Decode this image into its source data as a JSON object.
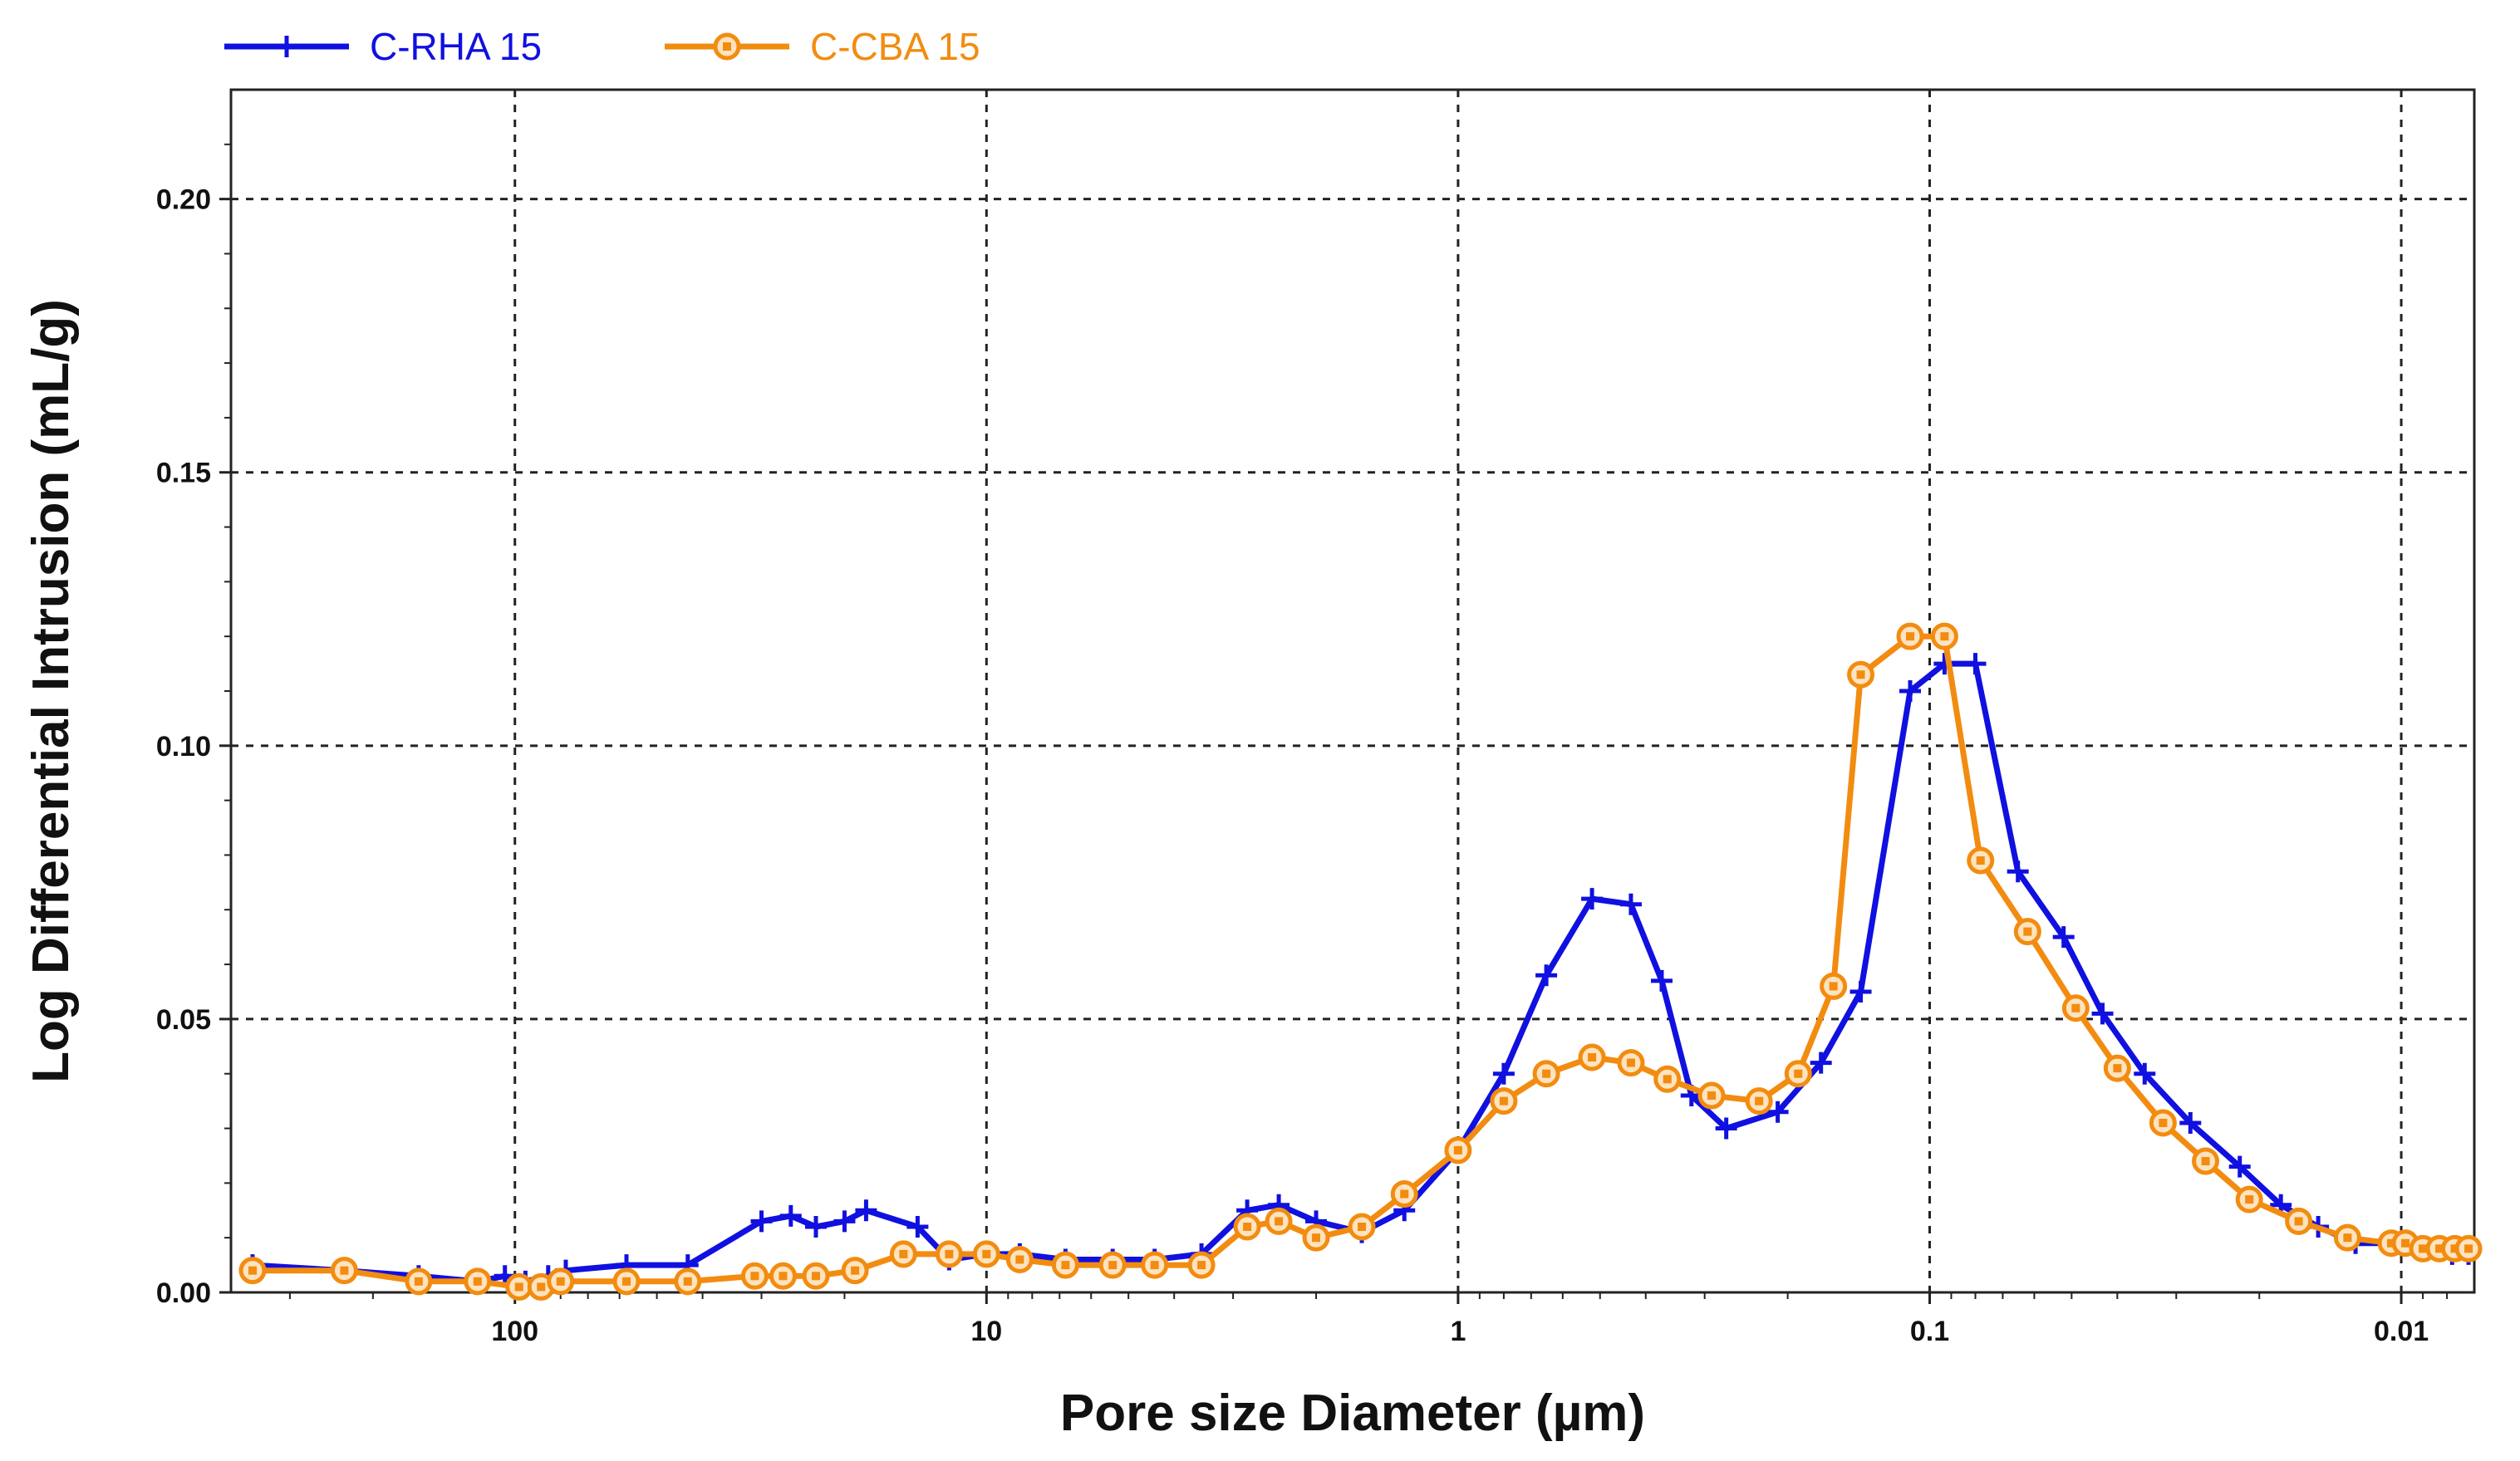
{
  "chart_data": {
    "type": "line",
    "title": "",
    "xlabel": "Pore size Diameter (µm)",
    "ylabel": "Log Differential Intrusion (mL/g)",
    "x_scale": "log",
    "x_reversed": true,
    "xlim": [
      400,
      0.007
    ],
    "ylim": [
      0.0,
      0.22
    ],
    "x_ticks": [
      {
        "value": 100,
        "label": "100"
      },
      {
        "value": 10,
        "label": "10"
      },
      {
        "value": 1,
        "label": "1"
      },
      {
        "value": 0.1,
        "label": "0.1"
      },
      {
        "value": 0.01,
        "label": "0.01"
      }
    ],
    "y_ticks": [
      {
        "value": 0.0,
        "label": "0.00"
      },
      {
        "value": 0.05,
        "label": "0.05"
      },
      {
        "value": 0.1,
        "label": "0.10"
      },
      {
        "value": 0.15,
        "label": "0.15"
      },
      {
        "value": 0.2,
        "label": "0.20"
      }
    ],
    "grid": true,
    "legend_position": "top-left",
    "series": [
      {
        "name": "C-RHA 15",
        "color": "#1010e0",
        "marker": "plus",
        "x": [
          360,
          230,
          160,
          120,
          105,
          95,
          85,
          78,
          58,
          43,
          30,
          26,
          23,
          20,
          18,
          14,
          12,
          10,
          8.5,
          6.8,
          5.4,
          4.4,
          3.5,
          2.8,
          2.4,
          2.0,
          1.6,
          1.3,
          1.0,
          0.8,
          0.65,
          0.52,
          0.43,
          0.37,
          0.32,
          0.27,
          0.21,
          0.17,
          0.14,
          0.11,
          0.093,
          0.08,
          0.065,
          0.052,
          0.043,
          0.035,
          0.028,
          0.022,
          0.018,
          0.015,
          0.0125,
          0.01,
          0.0092,
          0.0085,
          0.0078,
          0.0072
        ],
        "y": [
          0.005,
          0.004,
          0.003,
          0.002,
          0.003,
          0.002,
          0.003,
          0.004,
          0.005,
          0.005,
          0.013,
          0.014,
          0.012,
          0.013,
          0.015,
          0.012,
          0.006,
          0.007,
          0.007,
          0.006,
          0.006,
          0.006,
          0.007,
          0.015,
          0.016,
          0.013,
          0.011,
          0.015,
          0.026,
          0.04,
          0.058,
          0.072,
          0.071,
          0.057,
          0.036,
          0.03,
          0.033,
          0.042,
          0.055,
          0.11,
          0.115,
          0.115,
          0.077,
          0.065,
          0.051,
          0.04,
          0.031,
          0.023,
          0.016,
          0.012,
          0.009,
          0.009,
          0.008,
          0.008,
          0.007,
          0.007
        ]
      },
      {
        "name": "C-CBA 15",
        "color": "#f28c10",
        "marker": "circle",
        "x": [
          360,
          230,
          160,
          120,
          98,
          88,
          80,
          58,
          43,
          31,
          27,
          23,
          19,
          15,
          12,
          10,
          8.5,
          6.8,
          5.4,
          4.4,
          3.5,
          2.8,
          2.4,
          2.0,
          1.6,
          1.3,
          1.0,
          0.8,
          0.65,
          0.52,
          0.43,
          0.36,
          0.29,
          0.23,
          0.19,
          0.16,
          0.14,
          0.11,
          0.093,
          0.078,
          0.062,
          0.049,
          0.04,
          0.032,
          0.026,
          0.021,
          0.0165,
          0.013,
          0.0105,
          0.0098,
          0.009,
          0.0083,
          0.0077,
          0.0072
        ],
        "y": [
          0.004,
          0.004,
          0.002,
          0.002,
          0.001,
          0.001,
          0.002,
          0.002,
          0.002,
          0.003,
          0.003,
          0.003,
          0.004,
          0.007,
          0.007,
          0.007,
          0.006,
          0.005,
          0.005,
          0.005,
          0.005,
          0.012,
          0.013,
          0.01,
          0.012,
          0.018,
          0.026,
          0.035,
          0.04,
          0.043,
          0.042,
          0.039,
          0.036,
          0.035,
          0.04,
          0.056,
          0.113,
          0.12,
          0.12,
          0.079,
          0.066,
          0.052,
          0.041,
          0.031,
          0.024,
          0.017,
          0.013,
          0.01,
          0.009,
          0.009,
          0.008,
          0.008,
          0.008,
          0.008
        ]
      }
    ]
  }
}
